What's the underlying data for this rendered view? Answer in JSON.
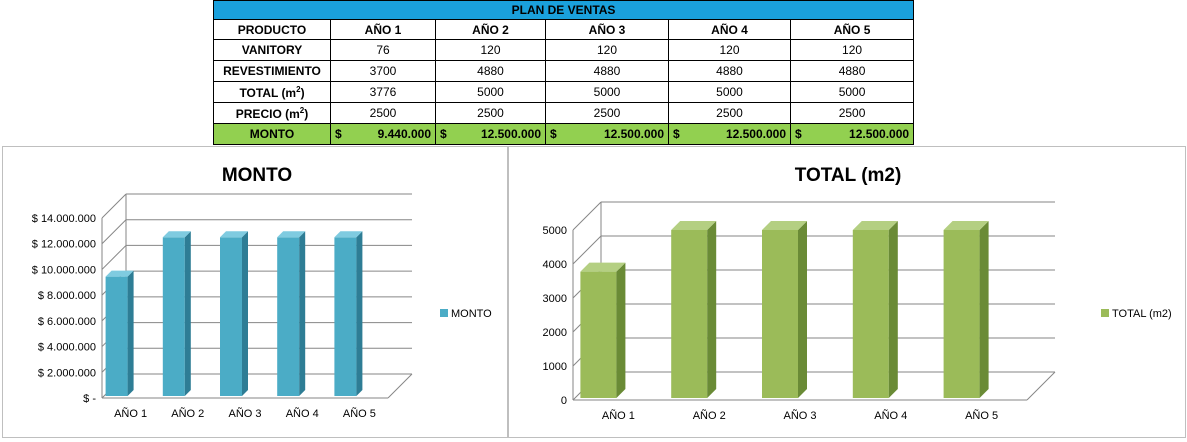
{
  "table": {
    "title": "PLAN DE VENTAS",
    "headers": [
      "PRODUCTO",
      "AÑO 1",
      "AÑO 2",
      "AÑO 3",
      "AÑO 4",
      "AÑO 5"
    ],
    "rows": [
      {
        "label": "VANITORY",
        "values": [
          "76",
          "120",
          "120",
          "120",
          "120"
        ]
      },
      {
        "label": "REVESTIMIENTO",
        "values": [
          "3700",
          "4880",
          "4880",
          "4880",
          "4880"
        ]
      },
      {
        "label": "TOTAL (m",
        "sup": "2",
        "label_end": ")",
        "values": [
          "3776",
          "5000",
          "5000",
          "5000",
          "5000"
        ]
      },
      {
        "label": "PRECIO (m",
        "sup": "2",
        "label_end": ")",
        "values": [
          "2500",
          "2500",
          "2500",
          "2500",
          "2500"
        ]
      }
    ],
    "monto": {
      "label": "MONTO",
      "currency": "$",
      "values": [
        "9.440.000",
        "12.500.000",
        "12.500.000",
        "12.500.000",
        "12.500.000"
      ]
    }
  },
  "chart_data": [
    {
      "type": "bar",
      "title": "MONTO",
      "categories": [
        "AÑO 1",
        "AÑO 2",
        "AÑO 3",
        "AÑO 4",
        "AÑO 5"
      ],
      "series": [
        {
          "name": "MONTO",
          "values": [
            9440000,
            12500000,
            12500000,
            12500000,
            12500000
          ]
        }
      ],
      "ylim": [
        0,
        14000000
      ],
      "yticks": [
        0,
        2000000,
        4000000,
        6000000,
        8000000,
        10000000,
        12000000,
        14000000
      ],
      "ytick_labels": [
        "$ -",
        "$ 2.000.000",
        "$ 4.000.000",
        "$ 6.000.000",
        "$ 8.000.000",
        "$ 10.000.000",
        "$ 12.000.000",
        "$ 14.000.000"
      ],
      "grid": true,
      "legend": "right",
      "color": "#4bacc6"
    },
    {
      "type": "bar",
      "title": "TOTAL (m2)",
      "categories": [
        "AÑO 1",
        "AÑO 2",
        "AÑO 3",
        "AÑO 4",
        "AÑO 5"
      ],
      "series": [
        {
          "name": "TOTAL (m2)",
          "values": [
            3776,
            5000,
            5000,
            5000,
            5000
          ]
        }
      ],
      "ylim": [
        0,
        5000
      ],
      "yticks": [
        0,
        1000,
        2000,
        3000,
        4000,
        5000
      ],
      "ytick_labels": [
        "0",
        "1000",
        "2000",
        "3000",
        "4000",
        "5000"
      ],
      "grid": true,
      "legend": "right",
      "color": "#9bbb59"
    }
  ]
}
